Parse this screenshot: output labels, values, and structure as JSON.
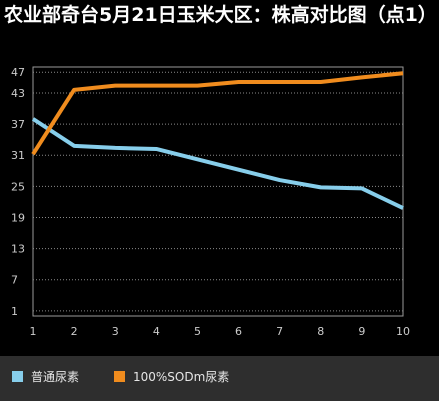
{
  "chart_data": {
    "type": "line",
    "title": "农业部奇台5月21日玉米大区：株高对比图（点1）",
    "xlabel": "",
    "ylabel": "",
    "x": [
      1,
      2,
      3,
      4,
      5,
      6,
      7,
      8,
      9,
      10
    ],
    "y_ticks": [
      1,
      7,
      13,
      19,
      25,
      31,
      37,
      43,
      47
    ],
    "ylim": [
      0,
      48
    ],
    "grid": "horizontal dotted",
    "legend_position": "bottom-left",
    "series": [
      {
        "name": "普通尿素",
        "color": "#87ceeb",
        "values": [
          38,
          32.8,
          32.4,
          32.2,
          30.2,
          28.2,
          26.2,
          24.8,
          24.6,
          20.8
        ]
      },
      {
        "name": "100%SODm尿素",
        "color": "#f08c1e",
        "values": [
          31.2,
          43.6,
          44.4,
          44.4,
          44.4,
          45.1,
          45.1,
          45.1,
          46.0,
          46.8
        ]
      }
    ]
  },
  "colors": {
    "background": "#000000",
    "plot_background": "#000000",
    "grid": "#8a8a8a",
    "axis_text": "#cccccc",
    "legend_background": "#2e2e2e"
  }
}
